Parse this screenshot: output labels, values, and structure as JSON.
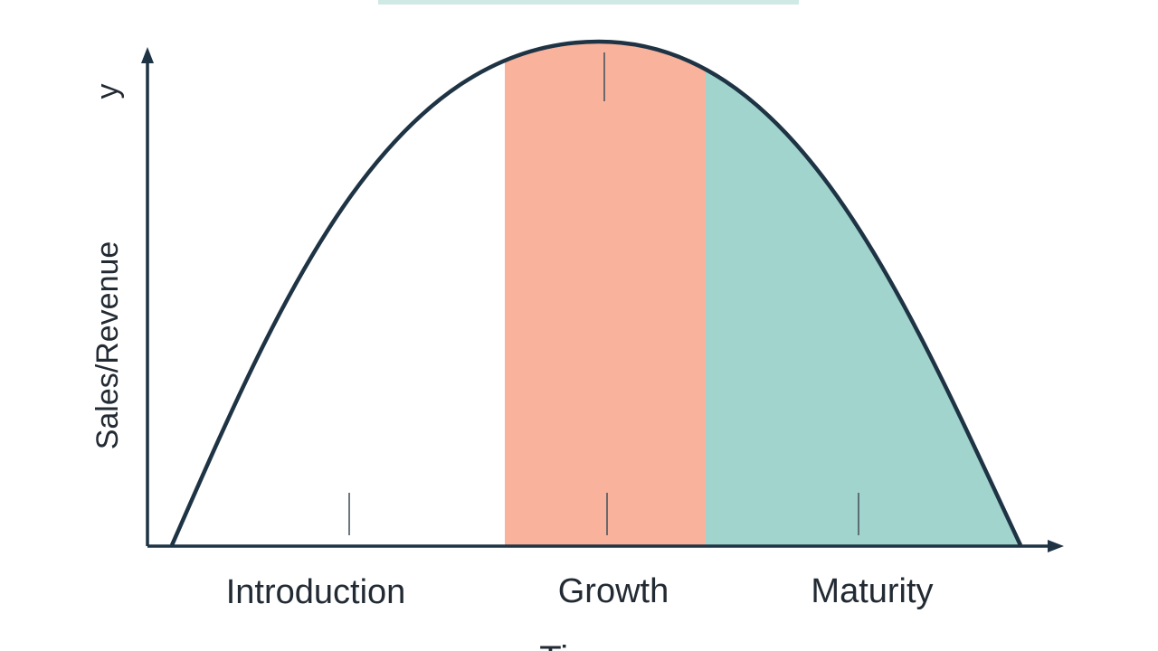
{
  "diagram": {
    "y_axis_label": "Sales/Revenue",
    "y_axis_letter": "y",
    "x_axis_label": "Time",
    "stages": [
      {
        "label": "Introduction",
        "color": "#ffffff"
      },
      {
        "label": "Growth",
        "color": "#f9b29b"
      },
      {
        "label": "Maturity",
        "color": "#a1d4cc"
      }
    ],
    "title_band_color": "#cfe9e4",
    "curve_color": "#1e3344",
    "axis_color": "#1e3344"
  }
}
